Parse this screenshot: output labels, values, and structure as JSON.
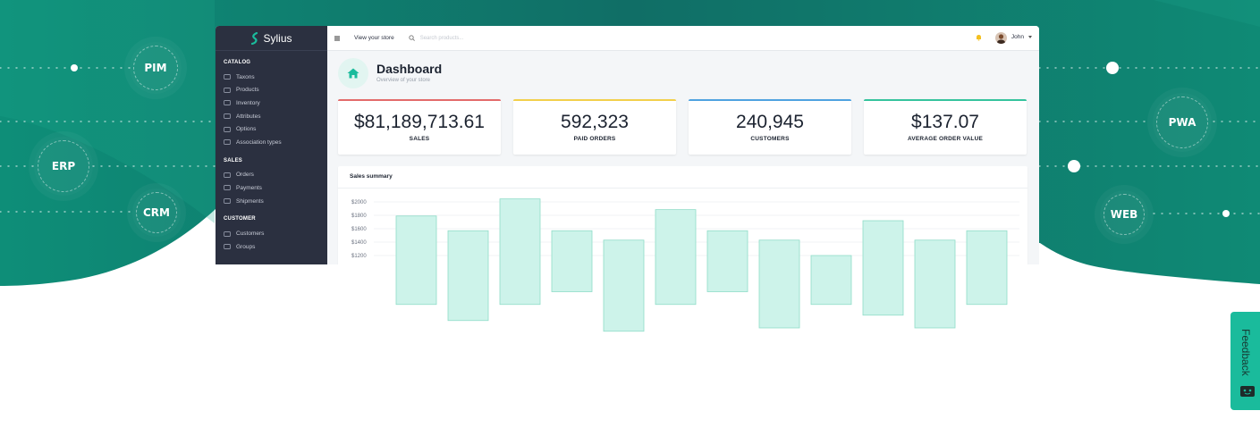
{
  "background": {
    "color_primary": "#0f8a75",
    "color_secondary": "#1a9b84",
    "left_nodes": [
      "PIM",
      "ERP",
      "CRM"
    ],
    "right_nodes": [
      "PWA",
      "WEB"
    ]
  },
  "app": {
    "brand": "Sylius",
    "sidebar": {
      "sections": [
        {
          "title": "CATALOG",
          "items": [
            {
              "label": "Taxons",
              "icon": "folder-icon"
            },
            {
              "label": "Products",
              "icon": "cube-icon"
            },
            {
              "label": "Inventory",
              "icon": "history-icon"
            },
            {
              "label": "Attributes",
              "icon": "cubes-icon"
            },
            {
              "label": "Options",
              "icon": "options-icon"
            },
            {
              "label": "Association types",
              "icon": "list-icon"
            }
          ]
        },
        {
          "title": "SALES",
          "items": [
            {
              "label": "Orders",
              "icon": "cart-icon"
            },
            {
              "label": "Payments",
              "icon": "payment-icon"
            },
            {
              "label": "Shipments",
              "icon": "truck-icon"
            }
          ]
        },
        {
          "title": "CUSTOMER",
          "items": [
            {
              "label": "Customers",
              "icon": "users-icon"
            },
            {
              "label": "Groups",
              "icon": "archive-icon"
            }
          ]
        }
      ]
    },
    "topbar": {
      "view_store": "View your store",
      "search_placeholder": "Search products...",
      "user_name": "John"
    },
    "header": {
      "title": "Dashboard",
      "subtitle": "Overview of your store"
    },
    "stats": [
      {
        "value": "$81,189,713.61",
        "label": "SALES",
        "color": "#e36b6b"
      },
      {
        "value": "592,323",
        "label": "PAID ORDERS",
        "color": "#f2d04b"
      },
      {
        "value": "240,945",
        "label": "CUSTOMERS",
        "color": "#4fa3e0"
      },
      {
        "value": "$137.07",
        "label": "AVERAGE ORDER VALUE",
        "color": "#35c39d"
      }
    ],
    "summary_title": "Sales summary"
  },
  "chart_data": {
    "type": "bar",
    "ylabels": [
      "$2000",
      "$1800",
      "$1600",
      "$1400",
      "$1200"
    ],
    "ylim": [
      1200,
      2000
    ],
    "bars": [
      {
        "top": 1790,
        "bottom": 470
      },
      {
        "top": 1570,
        "bottom": 230
      },
      {
        "top": 2045,
        "bottom": 470
      },
      {
        "top": 1570,
        "bottom": 660
      },
      {
        "top": 1430,
        "bottom": 70
      },
      {
        "top": 1885,
        "bottom": 470
      },
      {
        "top": 1570,
        "bottom": 660
      },
      {
        "top": 1430,
        "bottom": 120
      },
      {
        "top": 1200,
        "bottom": 470
      },
      {
        "top": 1720,
        "bottom": 310
      },
      {
        "top": 1430,
        "bottom": 120
      },
      {
        "top": 1570,
        "bottom": 470
      }
    ],
    "bar_color": "#cdf3ea",
    "bar_border": "#8fdcc8"
  },
  "feedback": {
    "label": "Feedback",
    "color": "#1abb9c"
  }
}
